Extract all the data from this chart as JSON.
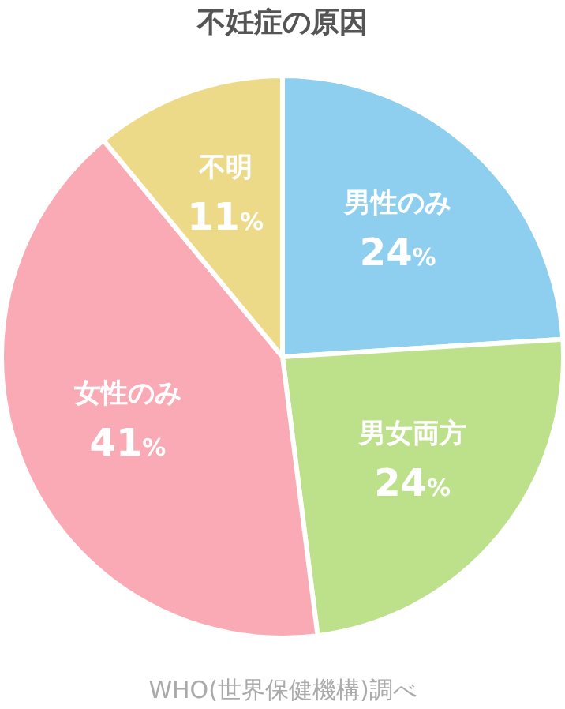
{
  "chart_data": {
    "type": "pie",
    "title": "不妊症の原因",
    "categories": [
      "男性のみ",
      "男女両方",
      "女性のみ",
      "不明"
    ],
    "values": [
      24,
      24,
      41,
      11
    ],
    "value_labels": [
      "24%",
      "24%",
      "41%",
      "11%"
    ],
    "colors": [
      "#8ecff0",
      "#bde08a",
      "#f9aab5",
      "#ecda88"
    ],
    "annotations": [
      "WHO(世界保健機構)調べ"
    ]
  }
}
